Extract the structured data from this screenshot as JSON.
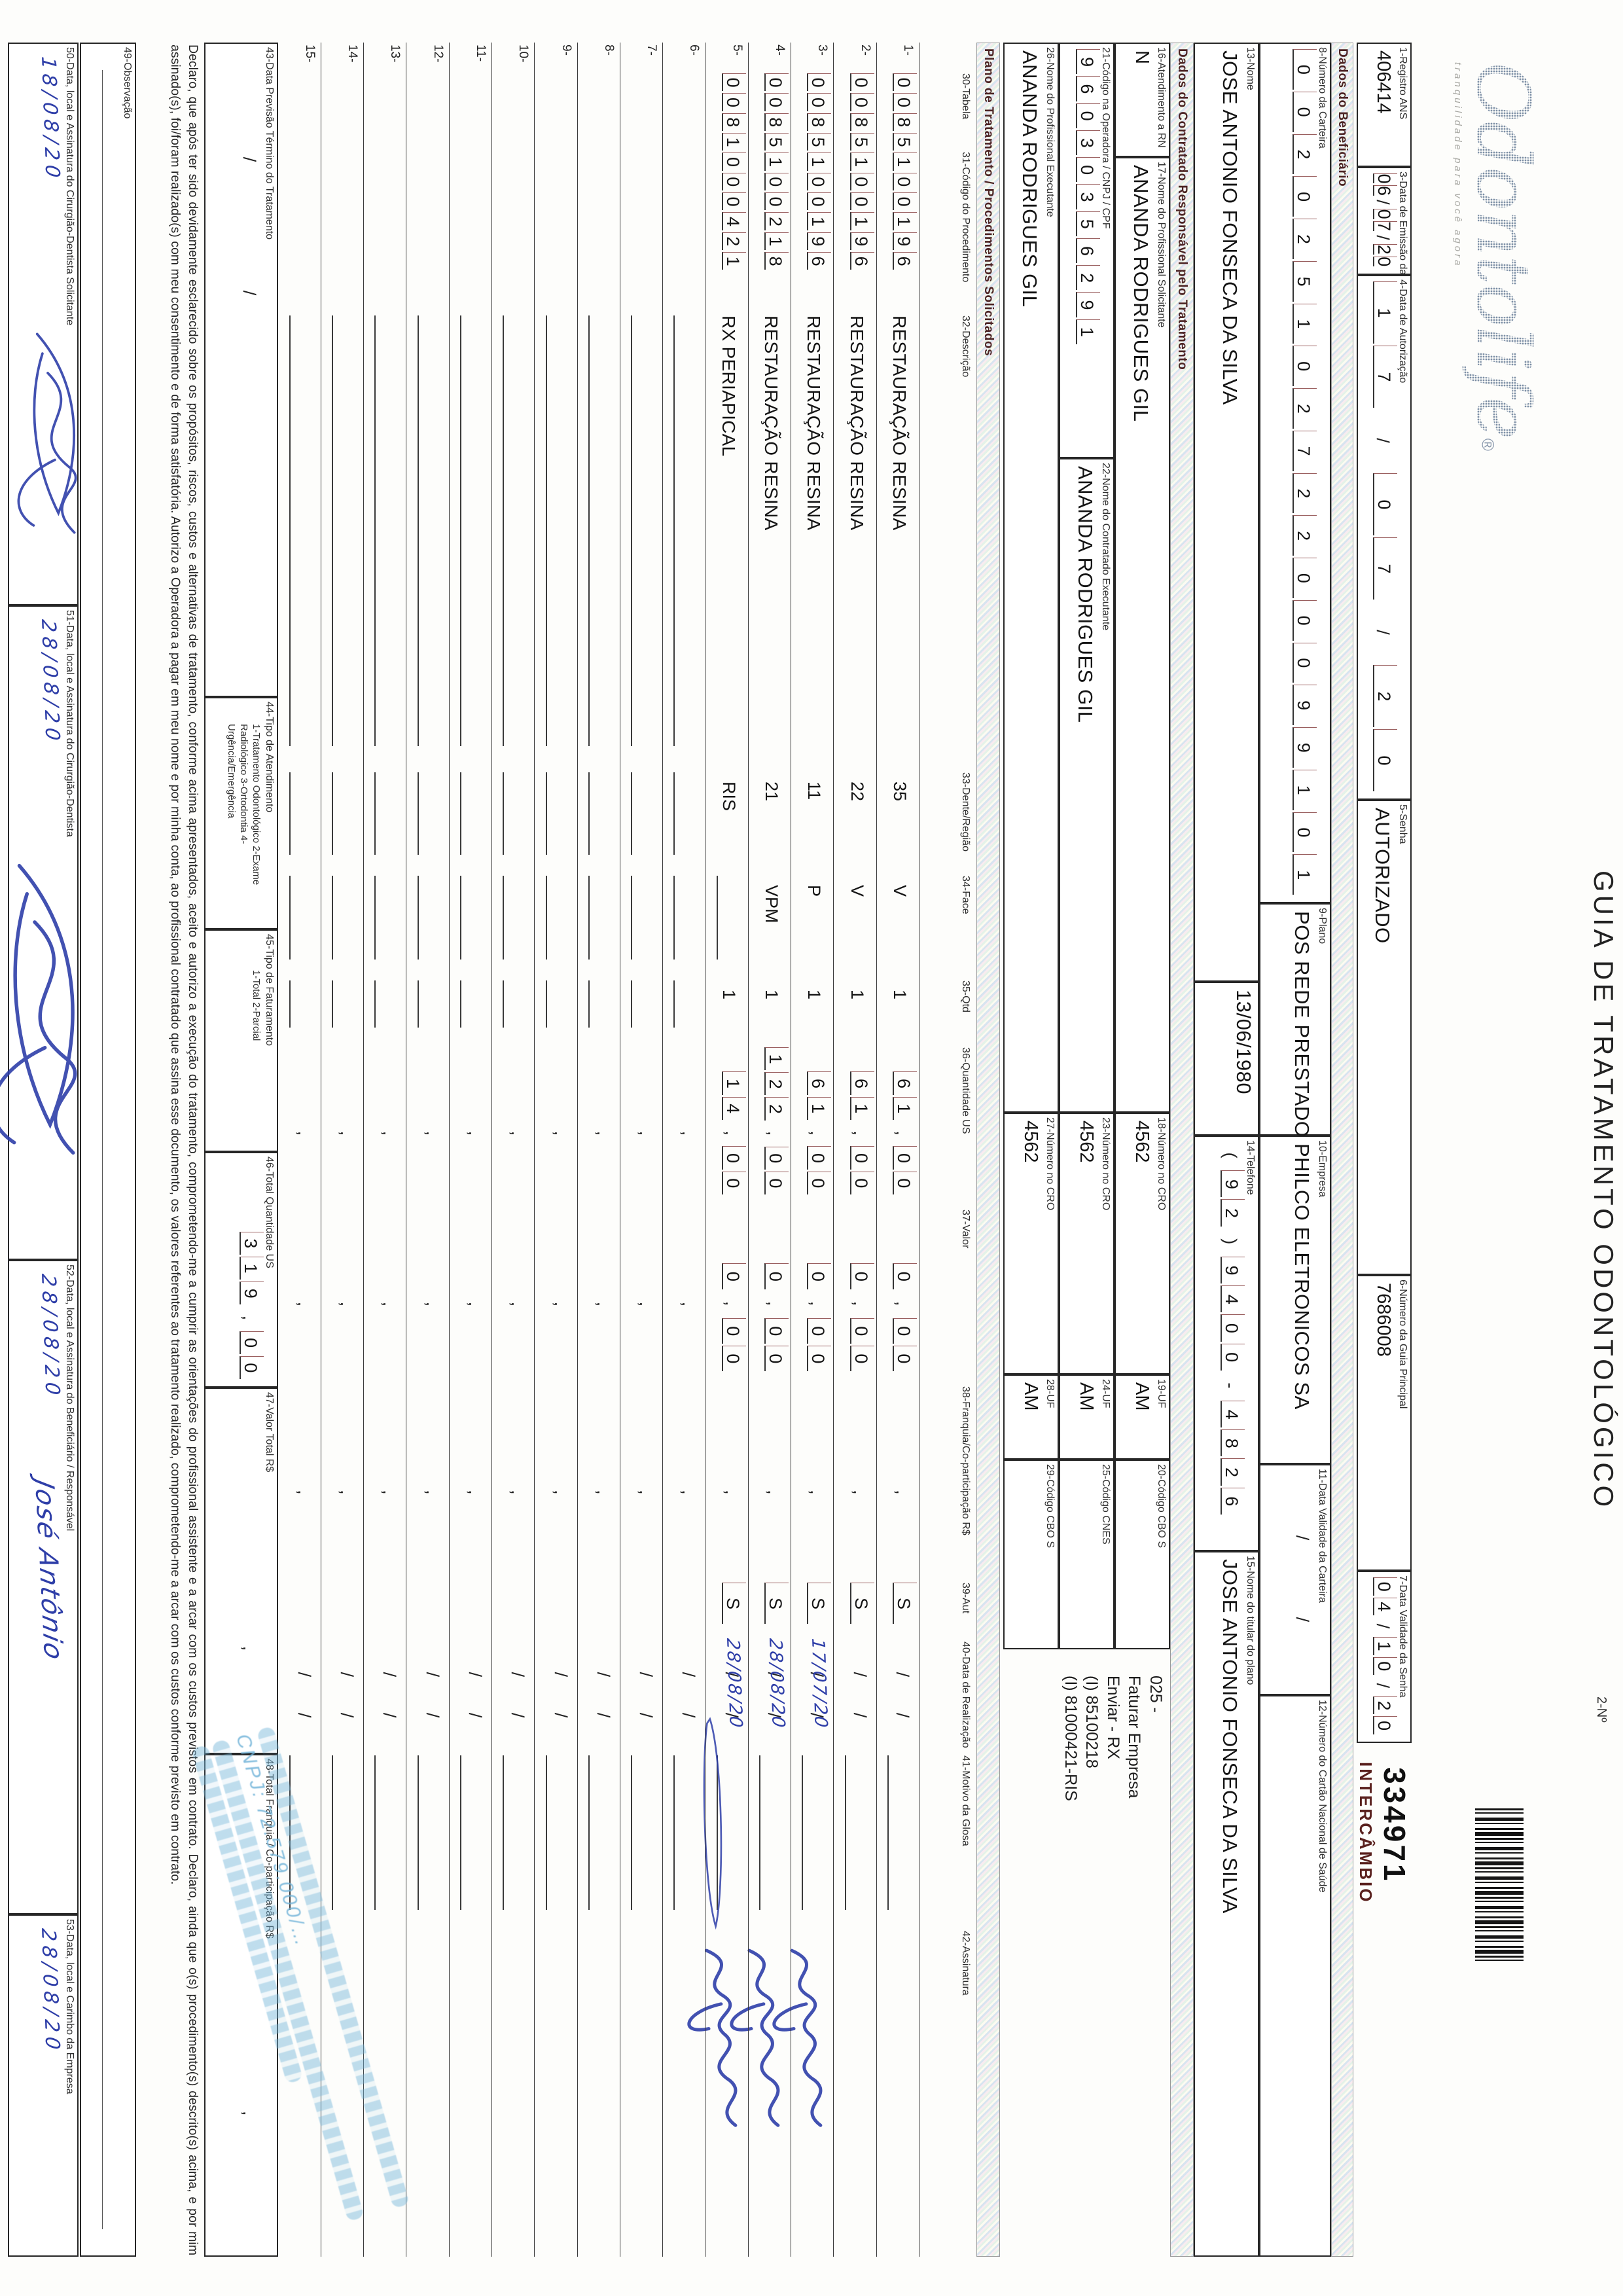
{
  "header": {
    "title": "GUIA DE TRATAMENTO ODONTOLÓGICO",
    "numero_label": "2-Nº",
    "numero": "334971",
    "intercambio": "INTERCÂMBIO",
    "logo_name": "Odontolife",
    "logo_reg": "®",
    "logo_tagline": "tranquilidade para você agora"
  },
  "sections": {
    "beneficiario": "Dados do Beneficiário",
    "contratado": "Dados do Contratado Responsável pelo Tratamento",
    "plano": "Plano de Tratamento / Procedimentos Solicitados"
  },
  "fields": {
    "1": {
      "label": "1-Registro ANS",
      "value": "406414",
      "type": "text"
    },
    "3": {
      "label": "3-Data de Emissão da Guia",
      "value": "06/07/20",
      "type": "date"
    },
    "4": {
      "label": "4-Data de Autorização",
      "value": "17/07/20",
      "type": "date"
    },
    "5": {
      "label": "5-Senha",
      "value": "AUTORIZADO",
      "type": "text"
    },
    "6": {
      "label": "6-Número da Guia Principal",
      "value": "7686008",
      "type": "text"
    },
    "7": {
      "label": "7-Data Validade da Senha",
      "value": "04/10/20",
      "type": "date"
    },
    "8": {
      "label": "8-Número da Carteira",
      "value": "00202510272200099101",
      "type": "cells",
      "n": 20
    },
    "9": {
      "label": "9-Plano",
      "value": "POS REDE PRESTADORA",
      "type": "text"
    },
    "10": {
      "label": "10-Empresa",
      "value": "PHILCO ELETRONICOS SA",
      "type": "text"
    },
    "11": {
      "label": "11-Data Validade da Carteira",
      "value": "",
      "type": "date"
    },
    "12": {
      "label": "12-Número do Cartão Nacional de Saúde",
      "value": "",
      "type": "text"
    },
    "13": {
      "label": "13-Nome",
      "value": "JOSE ANTONIO FONSECA DA SILVA",
      "type": "text"
    },
    "dob": {
      "label": "",
      "value": "13/06/1980",
      "type": "text"
    },
    "14": {
      "label": "14-Telefone",
      "value": "(92)9400-4826",
      "type": "cells",
      "n": 14
    },
    "15": {
      "label": "15-Nome do titular do plano",
      "value": "JOSE ANTONIO FONSECA DA SILVA",
      "type": "text"
    },
    "16": {
      "label": "16-Atendimento a RN",
      "value": "N",
      "type": "text"
    },
    "17": {
      "label": "17-Nome do Profissional Solicitante",
      "value": "ANANDA RODRIGUES GIL",
      "type": "text"
    },
    "18": {
      "label": "18-Número no CRO",
      "value": "4562",
      "type": "text"
    },
    "19": {
      "label": "19-UF",
      "value": "AM",
      "type": "text"
    },
    "20": {
      "label": "20-Código CBO S",
      "value": "",
      "type": "text"
    },
    "21": {
      "label": "21-Código na Operadora / CNPJ / CPF",
      "value": "96030356291",
      "type": "cells",
      "n": 15
    },
    "22": {
      "label": "22-Nome do Contratado Executante",
      "value": "ANANDA RODRIGUES GIL",
      "type": "text"
    },
    "23": {
      "label": "23-Número no CRO",
      "value": "4562",
      "type": "text"
    },
    "24": {
      "label": "24-UF",
      "value": "AM",
      "type": "text"
    },
    "25": {
      "label": "25-Código CNES",
      "value": "",
      "type": "text"
    },
    "26": {
      "label": "26-Nome do Profissional Executante",
      "value": "ANANDA RODRIGUES GIL",
      "type": "text"
    },
    "27": {
      "label": "27-Número no CRO",
      "value": "4562",
      "type": "text"
    },
    "28": {
      "label": "28-UF",
      "value": "AM",
      "type": "text"
    },
    "29": {
      "label": "29-Código CBO S",
      "value": "",
      "type": "text"
    }
  },
  "annotation": "025 -\nFaturar Empresa\nEnviar - RX\n(I) 85100218\n(I) 81000421-RIS",
  "table": {
    "headers": {
      "tabela": "30-Tabela",
      "codigo": "31-Código do Procedimento",
      "descricao": "32-Descrição",
      "dente": "33-Dente/Região",
      "face": "34-Face",
      "qtd": "35-Qtd",
      "us": "36-Quantidade US",
      "valor": "37-Valor",
      "franquia": "38-Franquia/Co-participação R$",
      "aut": "39-Aut",
      "data": "40-Data de Realização",
      "motivo": "41-Motivo da Glosa",
      "assinatura": "42-Assinatura"
    },
    "rows": [
      {
        "n": "1",
        "code": "0085100196",
        "desc": "RESTAURAÇÃO RESINA",
        "dente": "35",
        "face": "V",
        "qtd": "1",
        "us": "61,00",
        "valor": "0,00",
        "franquia": "",
        "aut": "S",
        "data": "",
        "sig": false
      },
      {
        "n": "2",
        "code": "0085100196",
        "desc": "RESTAURAÇÃO RESINA",
        "dente": "22",
        "face": "V",
        "qtd": "1",
        "us": "61,00",
        "valor": "0,00",
        "franquia": "",
        "aut": "S",
        "data": "",
        "sig": false
      },
      {
        "n": "3",
        "code": "0085100196",
        "desc": "RESTAURAÇÃO RESINA",
        "dente": "11",
        "face": "P",
        "qtd": "1",
        "us": "61,00",
        "valor": "0,00",
        "franquia": "",
        "aut": "S",
        "data": "17/07/20",
        "sig": true
      },
      {
        "n": "4",
        "code": "0085100218",
        "desc": "RESTAURAÇÃO RESINA",
        "dente": "21",
        "face": "VPM",
        "qtd": "1",
        "us": "122,00",
        "valor": "0,00",
        "franquia": "",
        "aut": "S",
        "data": "28/08/20",
        "sig": true
      },
      {
        "n": "5",
        "code": "0081000421",
        "desc": "RX PERIAPICAL",
        "dente": "RIS",
        "face": "",
        "qtd": "1",
        "us": "14,00",
        "valor": "0,00",
        "franquia": "",
        "aut": "S",
        "data": "28/08/20",
        "sig": true
      },
      {
        "n": "6"
      },
      {
        "n": "7"
      },
      {
        "n": "8"
      },
      {
        "n": "9"
      },
      {
        "n": "10"
      },
      {
        "n": "11"
      },
      {
        "n": "12"
      },
      {
        "n": "13"
      },
      {
        "n": "14"
      },
      {
        "n": "15"
      }
    ]
  },
  "totals": {
    "43": {
      "label": "43-Data Previsão Término do Tratamento",
      "value": "",
      "type": "date"
    },
    "44": {
      "label": "44-Tipo de Atendimento",
      "value": "",
      "legend": "1-Tratamento Odontológico  2-Exame Radiológico  3-Ortodontia  4-Urgência/Emergência"
    },
    "45": {
      "label": "45-Tipo de Faturamento",
      "value": "",
      "legend": "1-Total  2-Parcial"
    },
    "46": {
      "label": "46-Total Quantidade US",
      "value": "319,00"
    },
    "47": {
      "label": "47-Valor Total R$",
      "value": ""
    },
    "48": {
      "label": "48-Total Franquia / Co-participação R$",
      "value": ""
    }
  },
  "declaration": "Declaro, que após ter sido devidamente esclarecido sobre os propósitos, riscos, custos e alternativas de tratamento, conforme acima apresentados, aceito e autorizo a execução do tratamento, comprometendo-me a cumprir as orientações do profissional assistente e a arcar com os custos previstos em contrato. Declaro, ainda que o(s) procedimento(s) descrito(s) acima, e por mim assinado(s), foi/foram realizado(s) com meu consentimento e de forma satisfatória. Autorizo a Operadora a pagar em meu nome e por minha conta, ao profissional contratado que assina esse documento, os valores referentes ao tratamento realizado, comprometendo-me a arcar com os custos conforme previsto em contrato.",
  "observacao_label": "49-Observação",
  "signature_boxes": {
    "50": {
      "label": "50-Data, local e Assinatura do Cirurgião-Dentista Solicitante",
      "date": "18/08/20",
      "sig": "scrawl"
    },
    "51": {
      "label": "51-Data, local e Assinatura do Cirurgião-Dentista",
      "date": "28/08/20",
      "sig": "scrawl-big"
    },
    "52": {
      "label": "52-Data, local e Assinatura do Beneficiário / Responsável",
      "date": "28/08/20",
      "sig_text": "José Antônio"
    },
    "53": {
      "label": "53-Data, local e Carimbo da Empresa",
      "date": "28/08/20",
      "sig": ""
    }
  },
  "stamp": {
    "legible_text": "CNPJ: 72.579.000/…"
  }
}
